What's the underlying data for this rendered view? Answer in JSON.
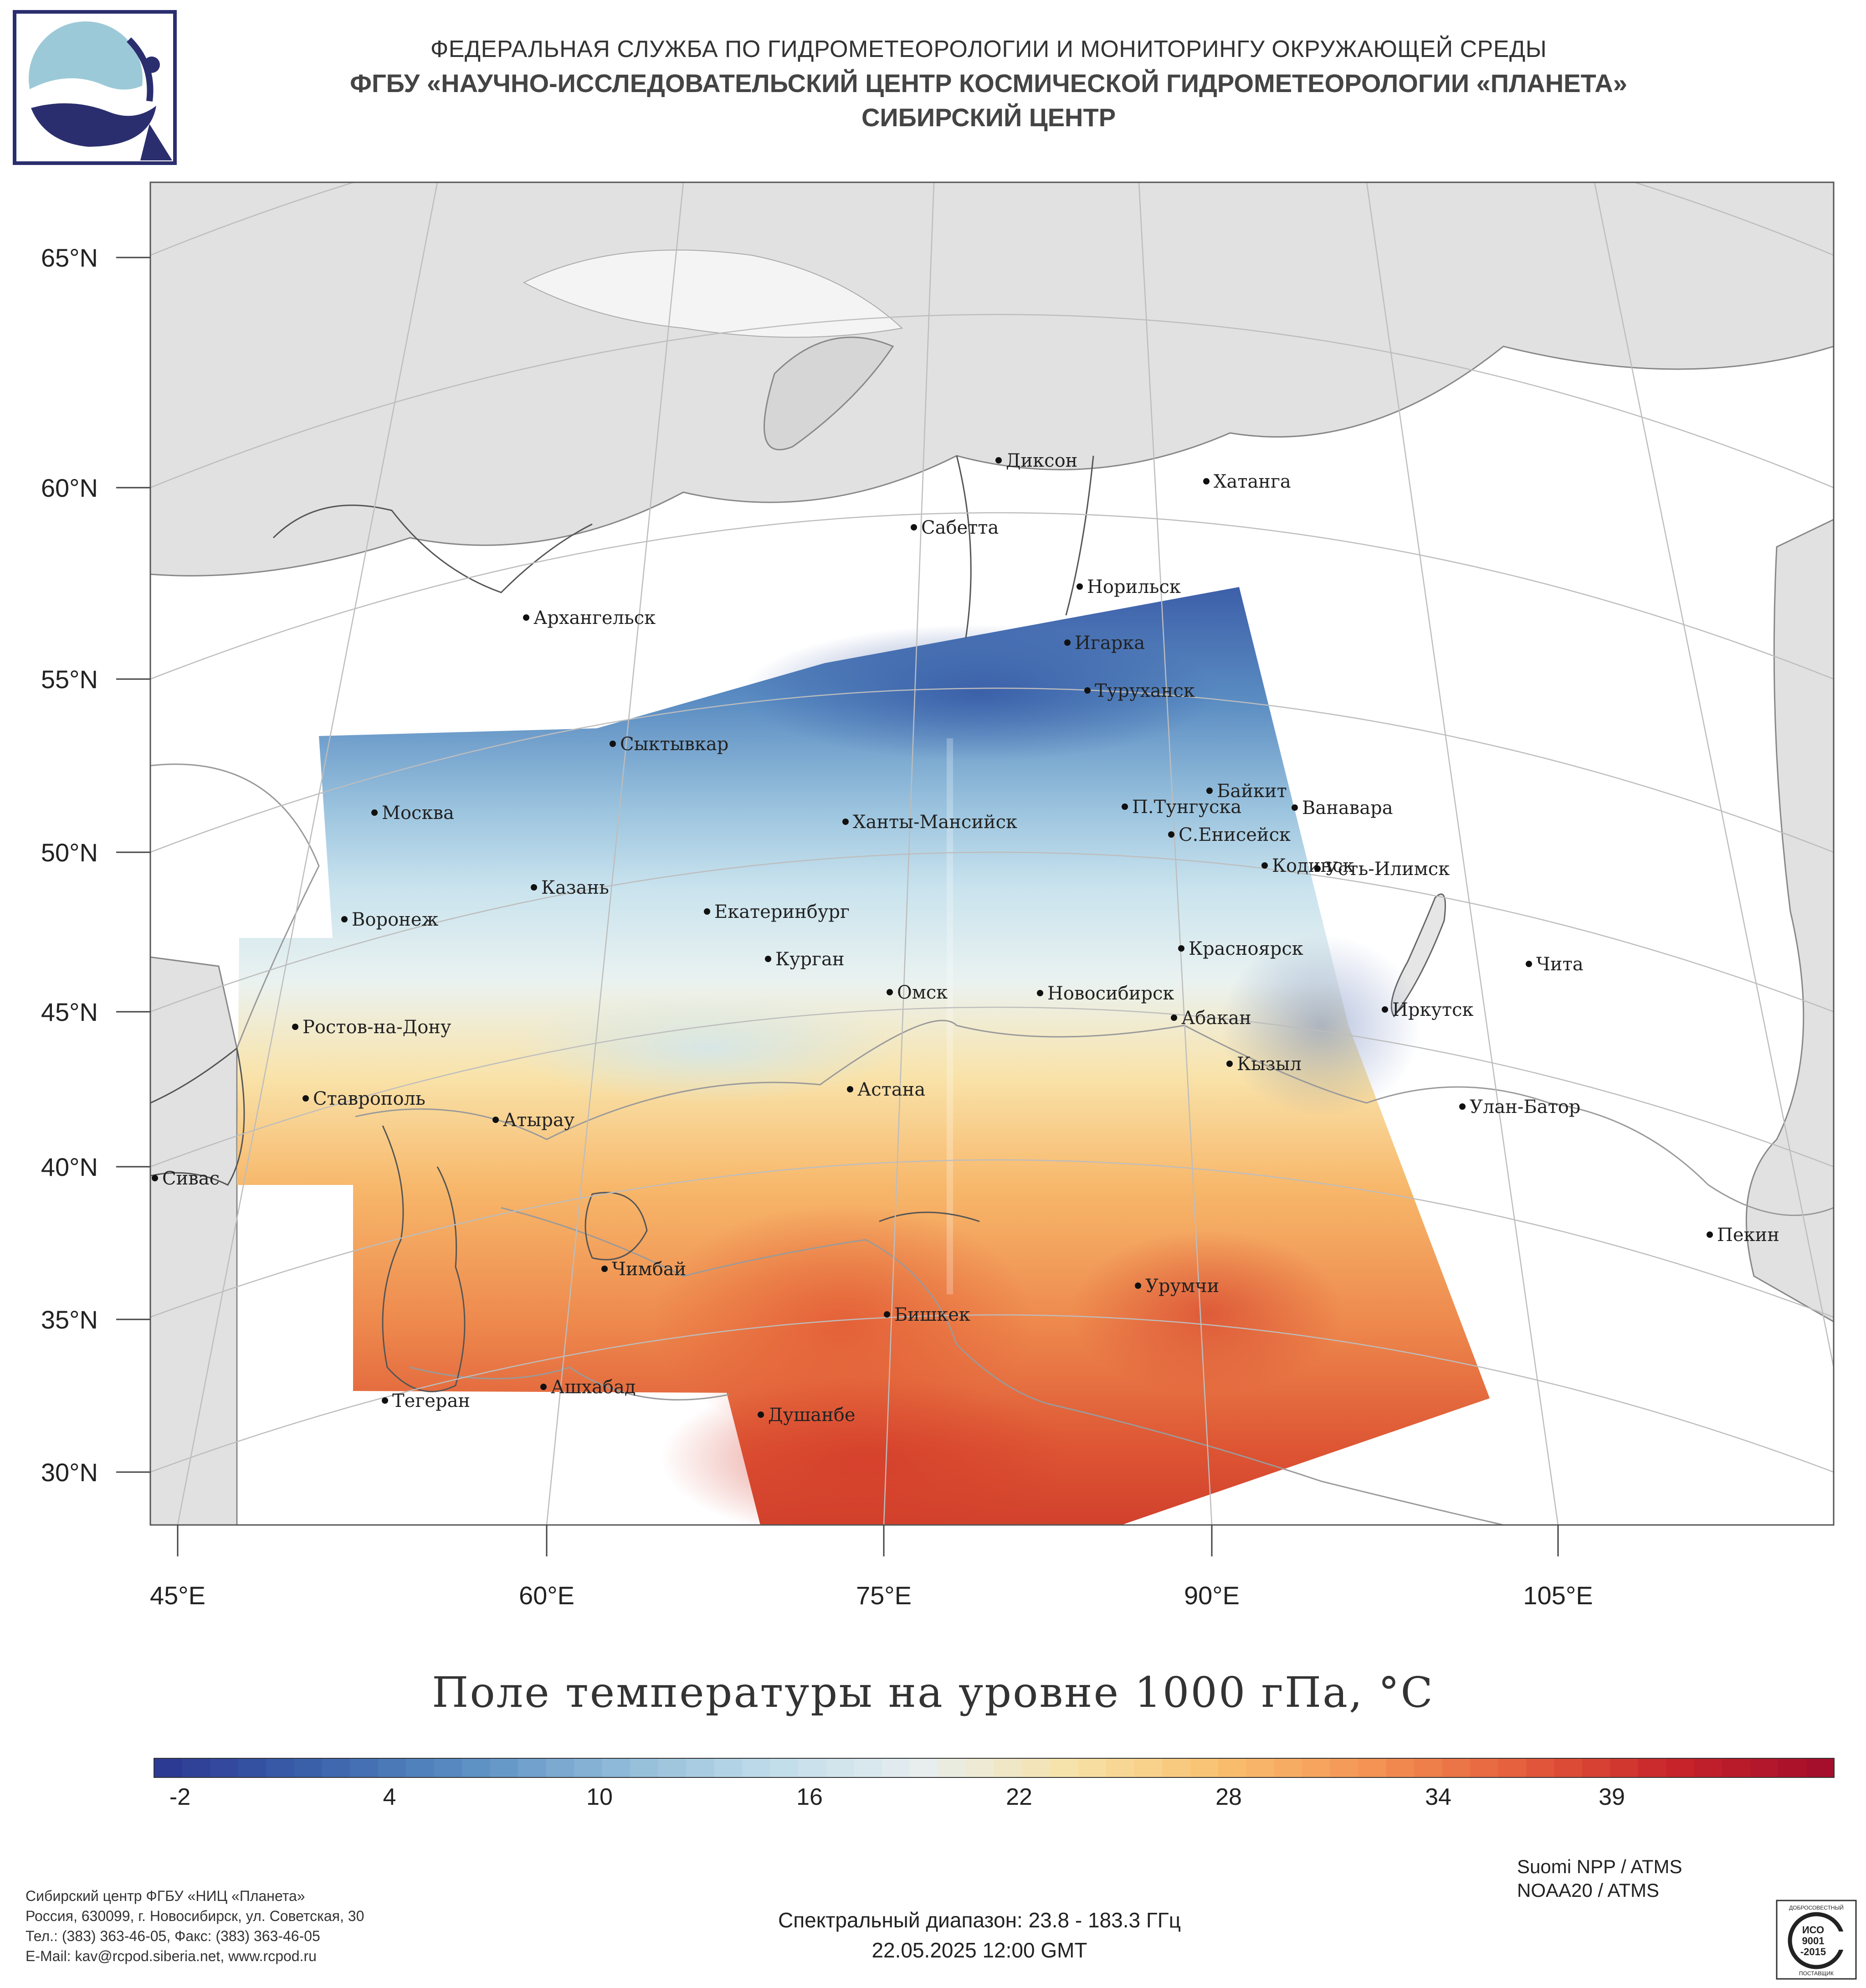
{
  "header": {
    "line1": "ФЕДЕРАЛЬНАЯ СЛУЖБА ПО ГИДРОМЕТЕОРОЛОГИИ И МОНИТОРИНГУ ОКРУЖАЮЩЕЙ СРЕДЫ",
    "line2": "ФГБУ «НАУЧНО-ИССЛЕДОВАТЕЛЬСКИЙ ЦЕНТР КОСМИЧЕСКОЙ ГИДРОМЕТЕОРОЛОГИИ «ПЛАНЕТА»",
    "line3": "СИБИРСКИЙ ЦЕНТР"
  },
  "map": {
    "lat_labels": [
      "65°N",
      "60°N",
      "55°N",
      "50°N",
      "45°N",
      "40°N",
      "35°N",
      "30°N"
    ],
    "lon_labels": [
      "45°E",
      "60°E",
      "75°E",
      "90°E",
      "105°E"
    ],
    "cities": [
      {
        "name": "Диксон"
      },
      {
        "name": "Хатанга"
      },
      {
        "name": "Сабетта"
      },
      {
        "name": "Норильск"
      },
      {
        "name": "Архангельск"
      },
      {
        "name": "Игарка"
      },
      {
        "name": "Туруханск"
      },
      {
        "name": "Сыктывкар"
      },
      {
        "name": "Байкит"
      },
      {
        "name": "П.Тунгуска"
      },
      {
        "name": "Ванавара"
      },
      {
        "name": "Москва"
      },
      {
        "name": "Ханты-Мансийск"
      },
      {
        "name": "С.Енисейск"
      },
      {
        "name": "Кодинск"
      },
      {
        "name": "Усть-Илимск"
      },
      {
        "name": "Казань"
      },
      {
        "name": "Екатеринбург"
      },
      {
        "name": "Воронеж"
      },
      {
        "name": "Красноярск"
      },
      {
        "name": "Курган"
      },
      {
        "name": "Чита"
      },
      {
        "name": "Омск"
      },
      {
        "name": "Новосибирск"
      },
      {
        "name": "Иркутск"
      },
      {
        "name": "Ростов-на-Дону"
      },
      {
        "name": "Абакан"
      },
      {
        "name": "Кызыл"
      },
      {
        "name": "Астана"
      },
      {
        "name": "Ставрополь"
      },
      {
        "name": "Улан-Батор"
      },
      {
        "name": "Атырау"
      },
      {
        "name": "Сивас"
      },
      {
        "name": "Пекин"
      },
      {
        "name": "Чимбай"
      },
      {
        "name": "Урумчи"
      },
      {
        "name": "Бишкек"
      },
      {
        "name": "Ашхабад"
      },
      {
        "name": "Тегеран"
      },
      {
        "name": "Душанбе"
      }
    ]
  },
  "map_title": "Поле температуры на уровне 1000 гПа, °C",
  "colorbar": {
    "tick_labels": [
      "-2",
      "4",
      "10",
      "16",
      "22",
      "28",
      "34",
      "39"
    ],
    "colors": [
      "#2c3a94",
      "#3b63ac",
      "#5b8fc3",
      "#8fbad8",
      "#bfdcea",
      "#e7eef0",
      "#f7e3a9",
      "#f9c06f",
      "#f49454",
      "#e55e3c",
      "#c8242a",
      "#a50f2b"
    ]
  },
  "footer": {
    "left": [
      "Сибирский центр ФГБУ «НИЦ «Планета»",
      "Россия, 630099, г. Новосибирск, ул. Советская, 30",
      "Тел.: (383) 363-46-05, Факс: (383) 363-46-05",
      "E-Mail: kav@rcpod.siberia.net, www.rcpod.ru"
    ],
    "spectral": "Спектральный диапазон: 23.8 - 183.3 ГГц",
    "datetime": "22.05.2025 12:00 GMT",
    "sensors": [
      "Suomi NPP / ATMS",
      "NOAA20 / ATMS"
    ]
  },
  "iso_badge": {
    "top": "ДОБРОСОВЕСТНЫЙ",
    "center": [
      "ИСО",
      "9001",
      "-2015"
    ],
    "bottom": "ПОСТАВЩИК"
  }
}
